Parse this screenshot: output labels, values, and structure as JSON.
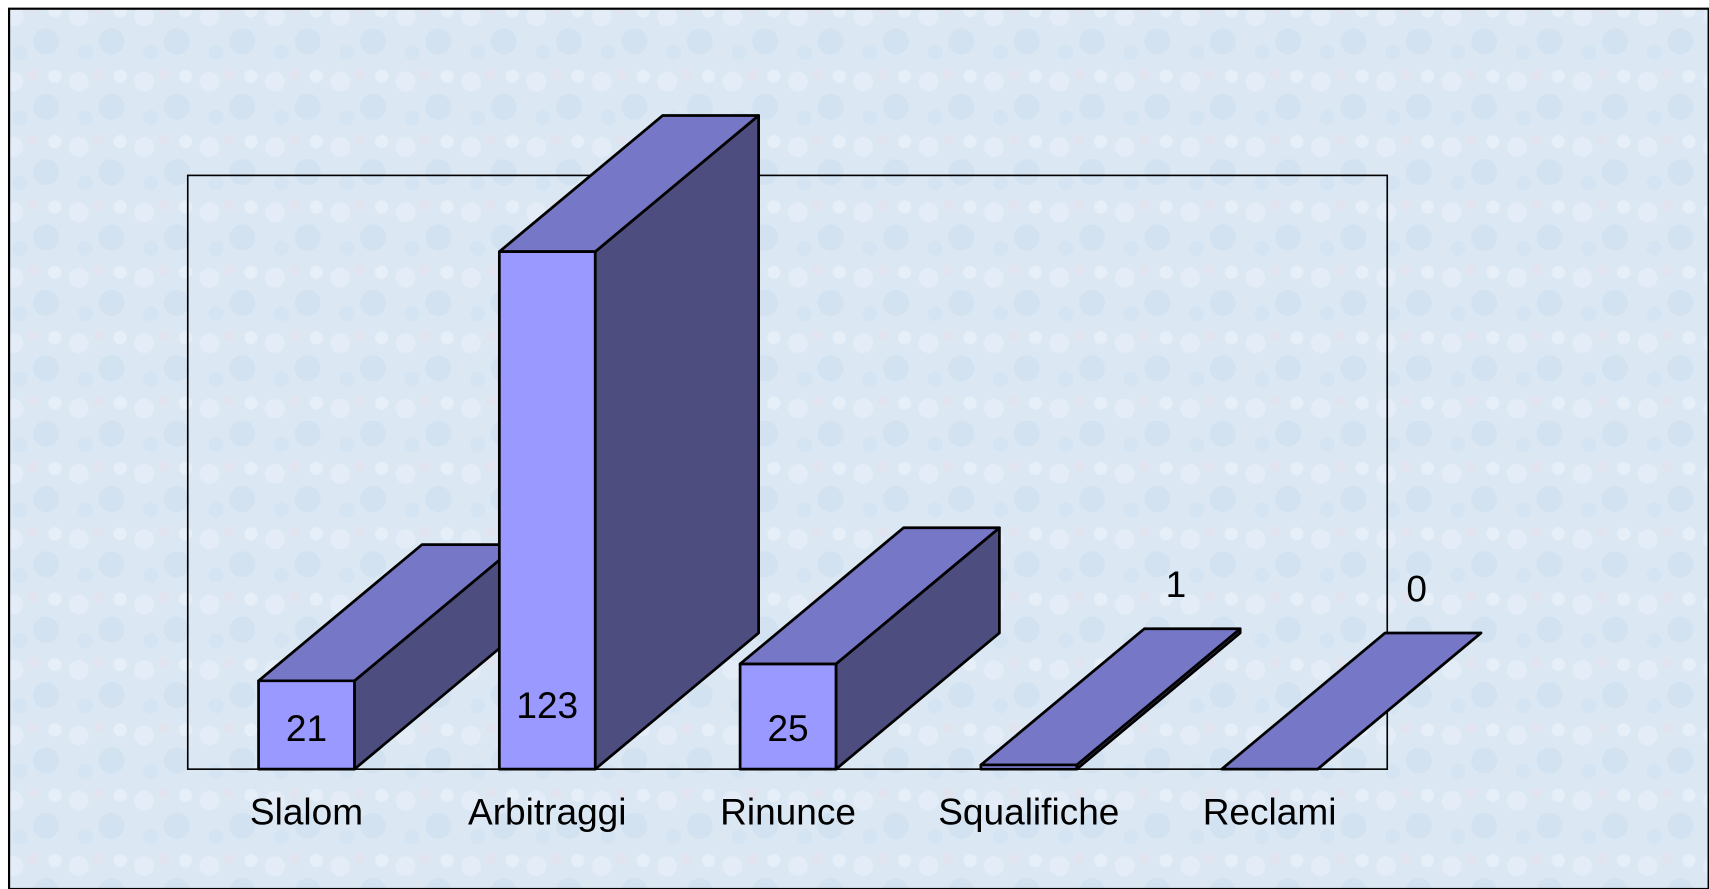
{
  "chart_data": {
    "type": "bar3d",
    "categories": [
      "Slalom",
      "Arbitraggi",
      "Rinunce",
      "Squalifiche",
      "Reclami"
    ],
    "values": [
      21,
      123,
      25,
      1,
      0
    ],
    "color": "#9999ff"
  }
}
